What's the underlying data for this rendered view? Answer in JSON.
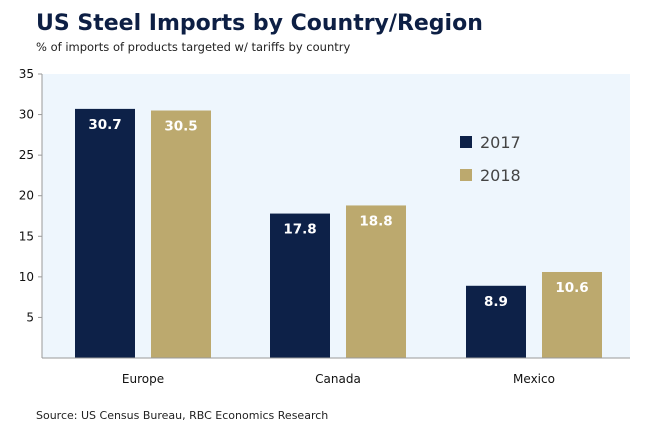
{
  "chart_data": {
    "type": "bar",
    "title": "US Steel Imports by Country/Region",
    "subtitle": "% of imports of products targeted w/ tariffs by country",
    "xlabel": "",
    "ylabel": "",
    "categories": [
      "Europe",
      "Canada",
      "Mexico"
    ],
    "series": [
      {
        "name": "2017",
        "values": [
          30.7,
          17.8,
          8.9
        ],
        "color": "#0d2148"
      },
      {
        "name": "2018",
        "values": [
          30.5,
          18.8,
          10.6
        ],
        "color": "#bca96e"
      }
    ],
    "ylim": [
      0,
      35
    ],
    "yticks": [
      5,
      10,
      15,
      20,
      25,
      30,
      35
    ],
    "data_labels": true,
    "grid": false,
    "legend_position": "right",
    "plot_background": "#eef6fd",
    "source": "Source: US Census Bureau, RBC Economics Research"
  }
}
